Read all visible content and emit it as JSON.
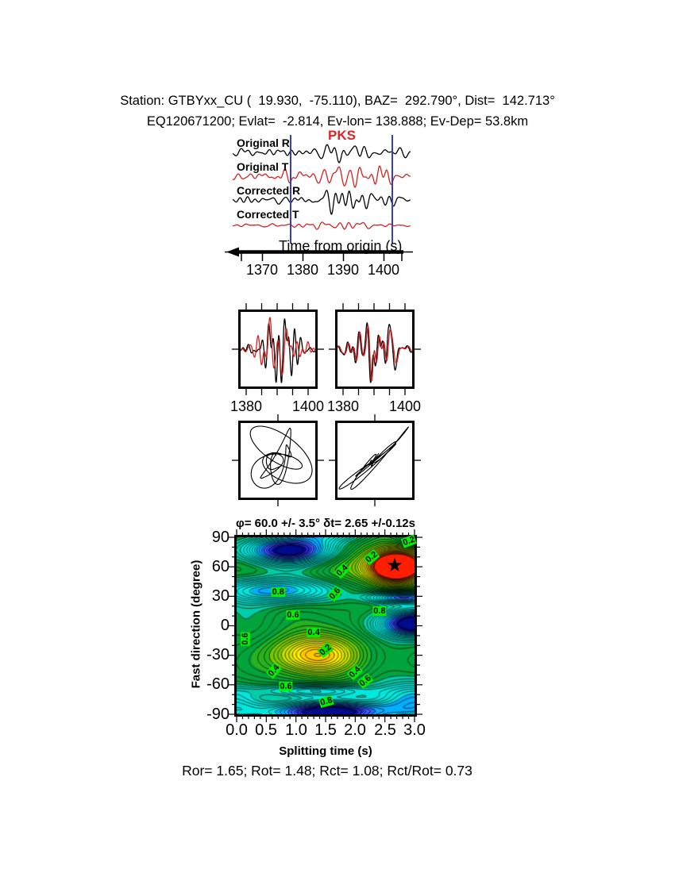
{
  "header": {
    "line1": "Station: GTBYxx_CU (  19.930,  -75.110), BAZ=  292.790°, Dist=  142.713°",
    "line2": "EQ120671200; Evlat=  -2.814, Ev-lon= 138.888; Ev-Dep= 53.8km"
  },
  "waveforms": {
    "trace_labels": [
      "Original R",
      "Original T",
      "Corrected R",
      "Corrected T"
    ],
    "phase_label": "PKS",
    "axis_label": "Time from origin (s)",
    "tick_labels": [
      "1370",
      "1380",
      "1390",
      "1400"
    ],
    "colors": {
      "radial": "#000000",
      "transverse": "#d42222",
      "pick_line": "#3a3fae",
      "phase": "#e02222"
    }
  },
  "window_panels": {
    "tick_labels": [
      "1380",
      "1400",
      "1380",
      "1400"
    ]
  },
  "chart_data": {
    "type": "contour",
    "title": "φ= 60.0 +/- 3.5° δt= 2.65 +/-0.12s",
    "xlabel": "Splitting time (s)",
    "ylabel": "Fast direction (degree)",
    "xlim": [
      0.0,
      3.0
    ],
    "ylim": [
      -90,
      90
    ],
    "xticks": [
      "0.0",
      "0.5",
      "1.0",
      "1.5",
      "2.0",
      "2.5",
      "3.0"
    ],
    "yticks": [
      "90",
      "60",
      "30",
      "0",
      "-30",
      "-60",
      "-90"
    ],
    "best_solution": {
      "phi_deg": 60.0,
      "phi_err_deg": 3.5,
      "dt_s": 2.65,
      "dt_err_s": 0.12
    },
    "star_glyph": "★",
    "field_extrema": {
      "minima_red": [
        {
          "x": 2.65,
          "y": 60
        },
        {
          "x": 1.28,
          "y": -30
        }
      ],
      "maxima_blue": [
        {
          "x": 0.85,
          "y": 78
        },
        {
          "x": 3.05,
          "y": 2
        },
        {
          "x": 1.5,
          "y": -88
        }
      ]
    },
    "contour_labels": [
      {
        "v": "0.8",
        "x": 0.7,
        "y": 34,
        "r": 0
      },
      {
        "v": "0.4",
        "x": 1.78,
        "y": 56,
        "r": -45
      },
      {
        "v": "0.2",
        "x": 2.28,
        "y": 70,
        "r": -40
      },
      {
        "v": "0.2",
        "x": 2.9,
        "y": 86,
        "r": -20
      },
      {
        "v": "0.6",
        "x": 1.66,
        "y": 33,
        "r": -50
      },
      {
        "v": "0.8",
        "x": 2.41,
        "y": 15,
        "r": 0
      },
      {
        "v": "0.6",
        "x": 0.95,
        "y": 11,
        "r": 0
      },
      {
        "v": "0.4",
        "x": 1.3,
        "y": -7,
        "r": 0
      },
      {
        "v": "0.2",
        "x": 1.5,
        "y": -25,
        "r": -40
      },
      {
        "v": "0.6",
        "x": 0.15,
        "y": -13,
        "r": -90
      },
      {
        "v": "0.4",
        "x": 0.63,
        "y": -46,
        "r": -50
      },
      {
        "v": "0.4",
        "x": 2.0,
        "y": -47,
        "r": -45
      },
      {
        "v": "0.6",
        "x": 2.17,
        "y": -56,
        "r": -40
      },
      {
        "v": "0.6",
        "x": 0.83,
        "y": -62,
        "r": 0
      },
      {
        "v": "0.8",
        "x": 1.52,
        "y": -77,
        "r": -15
      }
    ]
  },
  "footer": {
    "stats": "Ror= 1.65; Rot= 1.48; Rct= 1.08; Rct/Rot= 0.73"
  }
}
